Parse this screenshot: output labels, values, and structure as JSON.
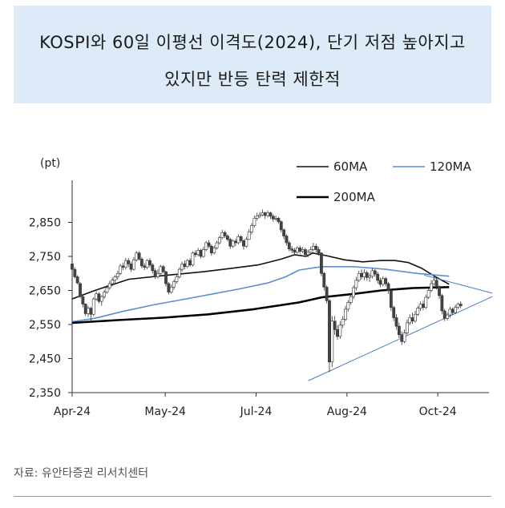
{
  "title": {
    "line1": "KOSPI와 60일 이평선 이격도(2024), 단기 저점 높아지고",
    "line2": "있지만 반등 탄력 제한적"
  },
  "source": "자료: 유안타증권 리서치센터",
  "colors": {
    "title_bg": "#ddeaf7",
    "ma60": "#111111",
    "ma120": "#5b8fd0",
    "ma200": "#000000",
    "trend": "#4a7fc8",
    "candle_up": "#ffffff",
    "candle_down": "#444444"
  },
  "chart_data": {
    "type": "candlestick",
    "unit_label": "(pt)",
    "ylim": [
      2350,
      2950
    ],
    "yticks": [
      "2,350",
      "2,450",
      "2,550",
      "2,650",
      "2,750",
      "2,850"
    ],
    "ytick_values": [
      2350,
      2450,
      2550,
      2650,
      2750,
      2850
    ],
    "xlim": [
      0,
      180
    ],
    "xtick_labels": [
      "Apr-24",
      "May-24",
      "Jul-24",
      "Aug-24",
      "Oct-24"
    ],
    "xtick_positions": [
      0,
      41,
      81,
      121,
      161
    ],
    "legend": [
      "60MA",
      "120MA",
      "200MA"
    ],
    "series": [
      {
        "name": "60MA",
        "points": [
          [
            103,
            2750
          ],
          [
            106,
            2760
          ],
          [
            112,
            2752
          ],
          [
            120,
            2740
          ],
          [
            128,
            2734
          ],
          [
            136,
            2738
          ],
          [
            142,
            2738
          ],
          [
            148,
            2732
          ],
          [
            154,
            2715
          ],
          [
            160,
            2690
          ],
          [
            166,
            2668
          ]
        ]
      },
      {
        "name": "120MA",
        "points": [
          [
            0,
            2558
          ],
          [
            10,
            2568
          ],
          [
            22,
            2588
          ],
          [
            36,
            2608
          ],
          [
            50,
            2625
          ],
          [
            62,
            2640
          ],
          [
            74,
            2655
          ],
          [
            86,
            2672
          ],
          [
            94,
            2690
          ],
          [
            100,
            2710
          ],
          [
            110,
            2720
          ],
          [
            124,
            2720
          ],
          [
            138,
            2712
          ],
          [
            152,
            2700
          ],
          [
            166,
            2692
          ]
        ]
      },
      {
        "name": "200MA",
        "points": [
          [
            0,
            2555
          ],
          [
            20,
            2563
          ],
          [
            40,
            2570
          ],
          [
            60,
            2580
          ],
          [
            80,
            2595
          ],
          [
            100,
            2615
          ],
          [
            110,
            2630
          ],
          [
            124,
            2640
          ],
          [
            136,
            2650
          ],
          [
            150,
            2657
          ],
          [
            166,
            2660
          ]
        ]
      },
      {
        "name": "upper_support",
        "points": [
          [
            0,
            2625
          ],
          [
            10,
            2650
          ],
          [
            25,
            2683
          ],
          [
            42,
            2695
          ],
          [
            58,
            2705
          ],
          [
            70,
            2715
          ],
          [
            82,
            2725
          ],
          [
            92,
            2742
          ],
          [
            98,
            2755
          ],
          [
            103,
            2750
          ]
        ]
      }
    ],
    "trendlines": [
      {
        "from": [
          104,
          2385
        ],
        "to": [
          185,
          2632
        ]
      },
      {
        "from": [
          155,
          2695
        ],
        "to": [
          185,
          2642
        ]
      }
    ],
    "candles": [
      [
        2728,
        2712,
        2735,
        2705
      ],
      [
        2712,
        2690,
        2718,
        2685
      ],
      [
        2690,
        2672,
        2695,
        2668
      ],
      [
        2670,
        2632,
        2675,
        2628
      ],
      [
        2632,
        2610,
        2640,
        2600
      ],
      [
        2610,
        2582,
        2612,
        2575
      ],
      [
        2582,
        2598,
        2605,
        2572
      ],
      [
        2598,
        2580,
        2602,
        2558
      ],
      [
        2580,
        2625,
        2630,
        2575
      ],
      [
        2625,
        2640,
        2648,
        2620
      ],
      [
        2640,
        2618,
        2645,
        2612
      ],
      [
        2618,
        2632,
        2636,
        2605
      ],
      [
        2632,
        2645,
        2652,
        2625
      ],
      [
        2645,
        2658,
        2665,
        2640
      ],
      [
        2658,
        2670,
        2678,
        2652
      ],
      [
        2670,
        2680,
        2688,
        2662
      ],
      [
        2680,
        2690,
        2695,
        2672
      ],
      [
        2690,
        2700,
        2708,
        2682
      ],
      [
        2700,
        2722,
        2728,
        2695
      ],
      [
        2722,
        2718,
        2732,
        2710
      ],
      [
        2718,
        2738,
        2745,
        2712
      ],
      [
        2738,
        2728,
        2745,
        2718
      ],
      [
        2728,
        2712,
        2735,
        2705
      ],
      [
        2712,
        2740,
        2748,
        2708
      ],
      [
        2740,
        2760,
        2766,
        2735
      ],
      [
        2760,
        2742,
        2765,
        2738
      ],
      [
        2742,
        2722,
        2748,
        2715
      ],
      [
        2722,
        2718,
        2730,
        2710
      ],
      [
        2718,
        2738,
        2742,
        2712
      ],
      [
        2738,
        2725,
        2745,
        2718
      ],
      [
        2725,
        2708,
        2730,
        2700
      ],
      [
        2708,
        2690,
        2715,
        2684
      ],
      [
        2690,
        2700,
        2712,
        2685
      ],
      [
        2700,
        2720,
        2725,
        2695
      ],
      [
        2720,
        2705,
        2725,
        2700
      ],
      [
        2705,
        2670,
        2708,
        2662
      ],
      [
        2670,
        2645,
        2675,
        2638
      ],
      [
        2645,
        2660,
        2668,
        2640
      ],
      [
        2660,
        2676,
        2682,
        2652
      ],
      [
        2676,
        2690,
        2698,
        2670
      ],
      [
        2690,
        2712,
        2718,
        2685
      ],
      [
        2712,
        2728,
        2735,
        2705
      ],
      [
        2728,
        2720,
        2738,
        2712
      ],
      [
        2720,
        2738,
        2742,
        2715
      ],
      [
        2738,
        2725,
        2745,
        2720
      ],
      [
        2725,
        2760,
        2765,
        2720
      ],
      [
        2760,
        2755,
        2768,
        2748
      ],
      [
        2755,
        2768,
        2775,
        2750
      ],
      [
        2768,
        2750,
        2772,
        2744
      ],
      [
        2750,
        2770,
        2778,
        2746
      ],
      [
        2770,
        2790,
        2795,
        2765
      ],
      [
        2790,
        2780,
        2798,
        2774
      ],
      [
        2780,
        2760,
        2785,
        2752
      ],
      [
        2760,
        2775,
        2782,
        2756
      ],
      [
        2775,
        2790,
        2796,
        2770
      ],
      [
        2790,
        2805,
        2810,
        2785
      ],
      [
        2805,
        2820,
        2828,
        2800
      ],
      [
        2820,
        2810,
        2826,
        2804
      ],
      [
        2810,
        2800,
        2815,
        2794
      ],
      [
        2800,
        2780,
        2805,
        2772
      ],
      [
        2780,
        2795,
        2800,
        2775
      ],
      [
        2795,
        2790,
        2802,
        2780
      ],
      [
        2790,
        2808,
        2815,
        2785
      ],
      [
        2808,
        2796,
        2812,
        2790
      ],
      [
        2796,
        2780,
        2800,
        2770
      ],
      [
        2780,
        2800,
        2808,
        2775
      ],
      [
        2800,
        2822,
        2830,
        2798
      ],
      [
        2822,
        2840,
        2848,
        2815
      ],
      [
        2840,
        2862,
        2870,
        2835
      ],
      [
        2862,
        2868,
        2878,
        2855
      ],
      [
        2868,
        2872,
        2880,
        2862
      ],
      [
        2872,
        2878,
        2888,
        2868
      ],
      [
        2878,
        2870,
        2882,
        2860
      ],
      [
        2870,
        2878,
        2885,
        2864
      ],
      [
        2878,
        2868,
        2882,
        2860
      ],
      [
        2868,
        2860,
        2874,
        2852
      ],
      [
        2860,
        2862,
        2870,
        2855
      ],
      [
        2862,
        2852,
        2866,
        2846
      ],
      [
        2852,
        2828,
        2856,
        2820
      ],
      [
        2828,
        2810,
        2832,
        2800
      ],
      [
        2810,
        2790,
        2815,
        2782
      ],
      [
        2790,
        2772,
        2796,
        2765
      ],
      [
        2772,
        2768,
        2780,
        2760
      ],
      [
        2768,
        2762,
        2775,
        2755
      ],
      [
        2762,
        2775,
        2780,
        2758
      ],
      [
        2775,
        2765,
        2782,
        2758
      ],
      [
        2765,
        2770,
        2778,
        2760
      ],
      [
        2770,
        2755,
        2775,
        2748
      ],
      [
        2755,
        2762,
        2770,
        2748
      ],
      [
        2762,
        2770,
        2778,
        2755
      ],
      [
        2770,
        2780,
        2790,
        2765
      ],
      [
        2780,
        2770,
        2788,
        2762
      ],
      [
        2770,
        2760,
        2778,
        2752
      ],
      [
        2760,
        2700,
        2762,
        2692
      ],
      [
        2700,
        2660,
        2705,
        2650
      ],
      [
        2660,
        2620,
        2665,
        2612
      ],
      [
        2620,
        2440,
        2625,
        2410
      ],
      [
        2440,
        2560,
        2575,
        2425
      ],
      [
        2560,
        2535,
        2575,
        2520
      ],
      [
        2535,
        2515,
        2548,
        2505
      ],
      [
        2515,
        2548,
        2560,
        2508
      ],
      [
        2548,
        2565,
        2575,
        2540
      ],
      [
        2565,
        2595,
        2605,
        2560
      ],
      [
        2595,
        2615,
        2622,
        2588
      ],
      [
        2615,
        2632,
        2640,
        2608
      ],
      [
        2632,
        2658,
        2665,
        2625
      ],
      [
        2658,
        2680,
        2690,
        2650
      ],
      [
        2680,
        2700,
        2708,
        2675
      ],
      [
        2700,
        2690,
        2712,
        2682
      ],
      [
        2690,
        2702,
        2712,
        2680
      ],
      [
        2702,
        2688,
        2708,
        2678
      ],
      [
        2688,
        2692,
        2700,
        2675
      ],
      [
        2692,
        2708,
        2716,
        2685
      ],
      [
        2708,
        2698,
        2712,
        2690
      ],
      [
        2698,
        2680,
        2705,
        2670
      ],
      [
        2680,
        2668,
        2688,
        2660
      ],
      [
        2668,
        2685,
        2692,
        2662
      ],
      [
        2685,
        2670,
        2690,
        2662
      ],
      [
        2670,
        2650,
        2675,
        2640
      ],
      [
        2650,
        2600,
        2655,
        2590
      ],
      [
        2600,
        2570,
        2605,
        2560
      ],
      [
        2570,
        2545,
        2580,
        2535
      ],
      [
        2545,
        2520,
        2555,
        2510
      ],
      [
        2520,
        2500,
        2530,
        2490
      ],
      [
        2500,
        2525,
        2535,
        2495
      ],
      [
        2525,
        2555,
        2565,
        2520
      ],
      [
        2555,
        2570,
        2580,
        2548
      ],
      [
        2570,
        2560,
        2585,
        2552
      ],
      [
        2560,
        2580,
        2590,
        2555
      ],
      [
        2580,
        2598,
        2605,
        2575
      ],
      [
        2598,
        2610,
        2618,
        2590
      ],
      [
        2610,
        2600,
        2620,
        2592
      ],
      [
        2600,
        2630,
        2638,
        2595
      ],
      [
        2630,
        2650,
        2660,
        2625
      ],
      [
        2650,
        2670,
        2680,
        2645
      ],
      [
        2670,
        2680,
        2690,
        2662
      ],
      [
        2680,
        2660,
        2688,
        2652
      ],
      [
        2660,
        2635,
        2665,
        2625
      ],
      [
        2635,
        2590,
        2640,
        2580
      ],
      [
        2590,
        2568,
        2596,
        2560
      ],
      [
        2568,
        2578,
        2585,
        2562
      ],
      [
        2578,
        2595,
        2602,
        2570
      ],
      [
        2595,
        2585,
        2600,
        2578
      ],
      [
        2585,
        2600,
        2608,
        2580
      ],
      [
        2600,
        2610,
        2615,
        2595
      ],
      [
        2610,
        2605,
        2618,
        2598
      ]
    ],
    "candle_x_start": 0,
    "candle_x_step": 1.18
  }
}
